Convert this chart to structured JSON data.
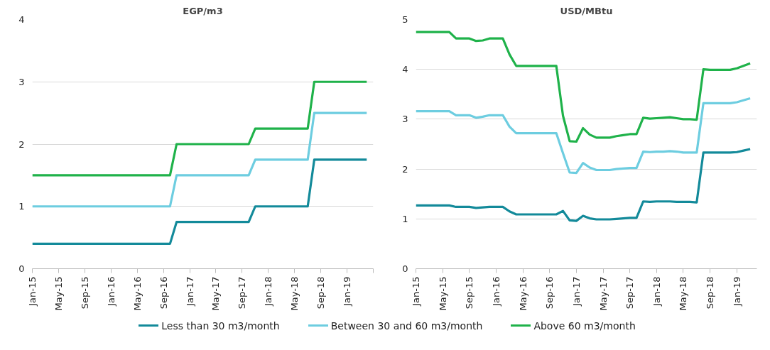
{
  "chart_data": [
    {
      "type": "line",
      "title": "EGP/m3",
      "legend": "bottom",
      "grid": "y",
      "line_style": "solid",
      "marker": "none",
      "x": [
        "2015-01",
        "2015-02",
        "2015-03",
        "2015-04",
        "2015-05",
        "2015-06",
        "2015-07",
        "2015-08",
        "2015-09",
        "2015-10",
        "2015-11",
        "2015-12",
        "2016-01",
        "2016-02",
        "2016-03",
        "2016-04",
        "2016-05",
        "2016-06",
        "2016-07",
        "2016-08",
        "2016-09",
        "2016-10",
        "2016-11",
        "2016-12",
        "2017-01",
        "2017-02",
        "2017-03",
        "2017-04",
        "2017-05",
        "2017-06",
        "2017-07",
        "2017-08",
        "2017-09",
        "2017-10",
        "2017-11",
        "2017-12",
        "2018-01",
        "2018-02",
        "2018-03",
        "2018-04",
        "2018-05",
        "2018-06",
        "2018-07",
        "2018-08",
        "2018-09",
        "2018-10",
        "2018-11",
        "2018-12",
        "2019-01",
        "2019-02",
        "2019-03",
        "2019-04"
      ],
      "series": [
        {
          "name": "Less than 30 m3/month",
          "color": "#138a9a",
          "values": [
            0.4,
            0.4,
            0.4,
            0.4,
            0.4,
            0.4,
            0.4,
            0.4,
            0.4,
            0.4,
            0.4,
            0.4,
            0.4,
            0.4,
            0.4,
            0.4,
            0.4,
            0.4,
            0.4,
            0.4,
            0.4,
            0.4,
            0.75,
            0.75,
            0.75,
            0.75,
            0.75,
            0.75,
            0.75,
            0.75,
            0.75,
            0.75,
            0.75,
            0.75,
            1,
            1,
            1,
            1,
            1,
            1,
            1,
            1,
            1,
            1.75,
            1.75,
            1.75,
            1.75,
            1.75,
            1.75,
            1.75,
            1.75,
            1.75
          ]
        },
        {
          "name": "Between 30 and 60 m3/month",
          "color": "#6dcde0",
          "values": [
            1,
            1,
            1,
            1,
            1,
            1,
            1,
            1,
            1,
            1,
            1,
            1,
            1,
            1,
            1,
            1,
            1,
            1,
            1,
            1,
            1,
            1,
            1.5,
            1.5,
            1.5,
            1.5,
            1.5,
            1.5,
            1.5,
            1.5,
            1.5,
            1.5,
            1.5,
            1.5,
            1.75,
            1.75,
            1.75,
            1.75,
            1.75,
            1.75,
            1.75,
            1.75,
            1.75,
            2.5,
            2.5,
            2.5,
            2.5,
            2.5,
            2.5,
            2.5,
            2.5,
            2.5
          ]
        },
        {
          "name": "Above 60 m3/month",
          "color": "#1fb24a",
          "values": [
            1.5,
            1.5,
            1.5,
            1.5,
            1.5,
            1.5,
            1.5,
            1.5,
            1.5,
            1.5,
            1.5,
            1.5,
            1.5,
            1.5,
            1.5,
            1.5,
            1.5,
            1.5,
            1.5,
            1.5,
            1.5,
            1.5,
            2,
            2,
            2,
            2,
            2,
            2,
            2,
            2,
            2,
            2,
            2,
            2,
            2.25,
            2.25,
            2.25,
            2.25,
            2.25,
            2.25,
            2.25,
            2.25,
            2.25,
            3,
            3,
            3,
            3,
            3,
            3,
            3,
            3,
            3
          ]
        }
      ],
      "xlim": [
        "2015-01",
        "2019-05"
      ],
      "xticks": [
        {
          "value": "2015-01",
          "label": "Jan-15"
        },
        {
          "value": "2015-05",
          "label": "May-15"
        },
        {
          "value": "2015-09",
          "label": "Sep-15"
        },
        {
          "value": "2016-01",
          "label": "Jan-16"
        },
        {
          "value": "2016-05",
          "label": "May-16"
        },
        {
          "value": "2016-09",
          "label": "Sep-16"
        },
        {
          "value": "2017-01",
          "label": "Jan-17"
        },
        {
          "value": "2017-05",
          "label": "May-17"
        },
        {
          "value": "2017-09",
          "label": "Sep-17"
        },
        {
          "value": "2018-01",
          "label": "Jan-18"
        },
        {
          "value": "2018-05",
          "label": "May-18"
        },
        {
          "value": "2018-09",
          "label": "Sep-18"
        },
        {
          "value": "2019-01",
          "label": "Jan-19"
        },
        {
          "value": "2019-05",
          "label": null
        }
      ],
      "ylim": [
        0,
        4
      ],
      "yticks": [
        0,
        1,
        2,
        3,
        4
      ]
    },
    {
      "type": "line",
      "title": "USD/MBtu",
      "legend": "bottom",
      "grid": "y",
      "line_style": "solid",
      "marker": "none",
      "x": [
        "2015-01",
        "2015-02",
        "2015-03",
        "2015-04",
        "2015-05",
        "2015-06",
        "2015-07",
        "2015-08",
        "2015-09",
        "2015-10",
        "2015-11",
        "2015-12",
        "2016-01",
        "2016-02",
        "2016-03",
        "2016-04",
        "2016-05",
        "2016-06",
        "2016-07",
        "2016-08",
        "2016-09",
        "2016-10",
        "2016-11",
        "2016-12",
        "2017-01",
        "2017-02",
        "2017-03",
        "2017-04",
        "2017-05",
        "2017-06",
        "2017-07",
        "2017-08",
        "2017-09",
        "2017-10",
        "2017-11",
        "2017-12",
        "2018-01",
        "2018-02",
        "2018-03",
        "2018-04",
        "2018-05",
        "2018-06",
        "2018-07",
        "2018-08",
        "2018-09",
        "2018-10",
        "2018-11",
        "2018-12",
        "2019-01",
        "2019-02",
        "2019-03"
      ],
      "series": [
        {
          "name": "Less than 30 m3/month",
          "color": "#138a9a",
          "values": [
            1.27,
            1.27,
            1.27,
            1.27,
            1.27,
            1.27,
            1.24,
            1.24,
            1.24,
            1.22,
            1.23,
            1.24,
            1.24,
            1.24,
            1.15,
            1.09,
            1.09,
            1.09,
            1.09,
            1.09,
            1.09,
            1.09,
            1.16,
            0.97,
            0.96,
            1.06,
            1.01,
            0.99,
            0.99,
            0.99,
            1,
            1.01,
            1.02,
            1.02,
            1.35,
            1.34,
            1.35,
            1.35,
            1.35,
            1.34,
            1.34,
            1.34,
            1.33,
            2.33,
            2.33,
            2.33,
            2.33,
            2.33,
            2.34,
            2.37,
            2.4
          ]
        },
        {
          "name": "Between 30 and 60 m3/month",
          "color": "#6dcde0",
          "values": [
            3.16,
            3.16,
            3.16,
            3.16,
            3.16,
            3.16,
            3.08,
            3.08,
            3.08,
            3.03,
            3.05,
            3.08,
            3.08,
            3.08,
            2.85,
            2.72,
            2.72,
            2.72,
            2.72,
            2.72,
            2.72,
            2.72,
            2.32,
            1.93,
            1.92,
            2.12,
            2.03,
            1.98,
            1.98,
            1.98,
            2,
            2.01,
            2.02,
            2.02,
            2.35,
            2.34,
            2.35,
            2.35,
            2.36,
            2.35,
            2.33,
            2.33,
            2.33,
            3.32,
            3.32,
            3.32,
            3.32,
            3.32,
            3.34,
            3.38,
            3.42
          ]
        },
        {
          "name": "Above 60 m3/month",
          "color": "#1fb24a",
          "values": [
            4.75,
            4.75,
            4.75,
            4.75,
            4.75,
            4.75,
            4.62,
            4.62,
            4.62,
            4.57,
            4.58,
            4.62,
            4.62,
            4.62,
            4.3,
            4.07,
            4.07,
            4.07,
            4.07,
            4.07,
            4.07,
            4.07,
            3.07,
            2.56,
            2.55,
            2.82,
            2.69,
            2.63,
            2.63,
            2.63,
            2.66,
            2.68,
            2.7,
            2.7,
            3.03,
            3.01,
            3.02,
            3.03,
            3.04,
            3.02,
            3,
            3,
            2.99,
            4,
            3.99,
            3.99,
            3.99,
            3.99,
            4.02,
            4.07,
            4.12
          ]
        }
      ],
      "xlim": [
        "2015-01",
        "2019-04"
      ],
      "xticks": [
        {
          "value": "2015-01",
          "label": "Jan-15"
        },
        {
          "value": "2015-05",
          "label": "May-15"
        },
        {
          "value": "2015-09",
          "label": "Sep-15"
        },
        {
          "value": "2016-01",
          "label": "Jan-16"
        },
        {
          "value": "2016-05",
          "label": "May-16"
        },
        {
          "value": "2016-09",
          "label": "Sep-16"
        },
        {
          "value": "2017-01",
          "label": "Jan-17"
        },
        {
          "value": "2017-05",
          "label": "May-17"
        },
        {
          "value": "2017-09",
          "label": "Sep-17"
        },
        {
          "value": "2018-01",
          "label": "Jan-18"
        },
        {
          "value": "2018-05",
          "label": "May-18"
        },
        {
          "value": "2018-09",
          "label": "Sep-18"
        },
        {
          "value": "2019-01",
          "label": "Jan-19"
        }
      ],
      "ylim": [
        0,
        5
      ],
      "yticks": [
        0,
        1,
        2,
        3,
        4,
        5
      ]
    }
  ]
}
